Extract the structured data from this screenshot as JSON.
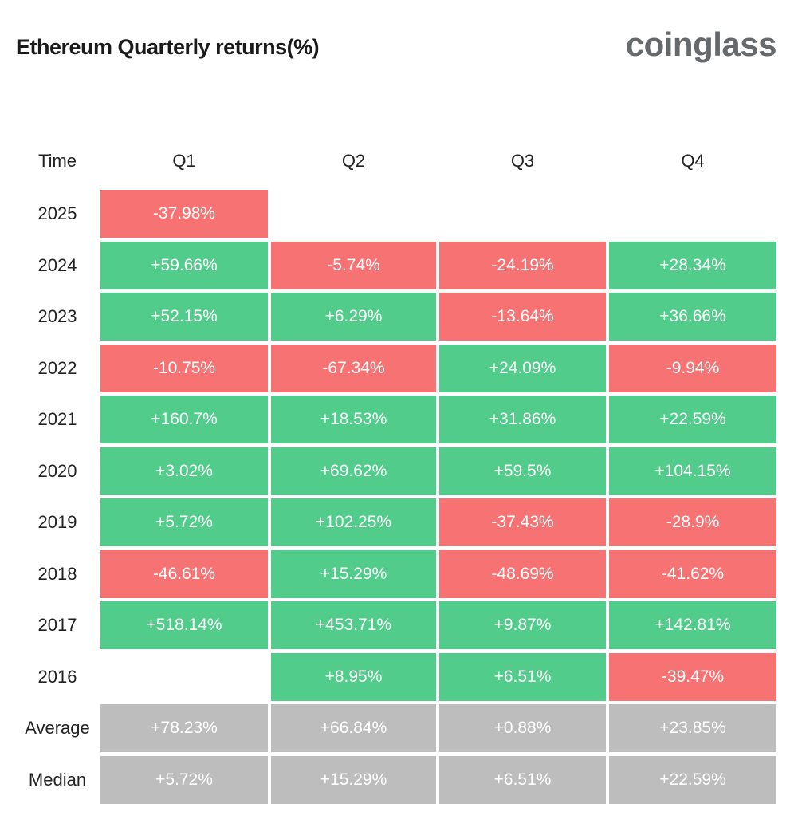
{
  "title": "Ethereum Quarterly returns(%)",
  "logo_text": "coinglass",
  "colors": {
    "positive": "#52cc8a",
    "negative": "#f77373",
    "summary": "#bdbdbd"
  },
  "chart_data": {
    "type": "heatmap",
    "title": "Ethereum Quarterly returns(%)",
    "row_header": "Time",
    "columns": [
      "Q1",
      "Q2",
      "Q3",
      "Q4"
    ],
    "rows": [
      {
        "label": "2025",
        "values": [
          "-37.98%",
          null,
          null,
          null
        ]
      },
      {
        "label": "2024",
        "values": [
          "+59.66%",
          "-5.74%",
          "-24.19%",
          "+28.34%"
        ]
      },
      {
        "label": "2023",
        "values": [
          "+52.15%",
          "+6.29%",
          "-13.64%",
          "+36.66%"
        ]
      },
      {
        "label": "2022",
        "values": [
          "-10.75%",
          "-67.34%",
          "+24.09%",
          "-9.94%"
        ]
      },
      {
        "label": "2021",
        "values": [
          "+160.7%",
          "+18.53%",
          "+31.86%",
          "+22.59%"
        ]
      },
      {
        "label": "2020",
        "values": [
          "+3.02%",
          "+69.62%",
          "+59.5%",
          "+104.15%"
        ]
      },
      {
        "label": "2019",
        "values": [
          "+5.72%",
          "+102.25%",
          "-37.43%",
          "-28.9%"
        ]
      },
      {
        "label": "2018",
        "values": [
          "-46.61%",
          "+15.29%",
          "-48.69%",
          "-41.62%"
        ]
      },
      {
        "label": "2017",
        "values": [
          "+518.14%",
          "+453.71%",
          "+9.87%",
          "+142.81%"
        ]
      },
      {
        "label": "2016",
        "values": [
          null,
          "+8.95%",
          "+6.51%",
          "-39.47%"
        ]
      }
    ],
    "summary_rows": [
      {
        "label": "Average",
        "values": [
          "+78.23%",
          "+66.84%",
          "+0.88%",
          "+23.85%"
        ]
      },
      {
        "label": "Median",
        "values": [
          "+5.72%",
          "+15.29%",
          "+6.51%",
          "+22.59%"
        ]
      }
    ]
  }
}
